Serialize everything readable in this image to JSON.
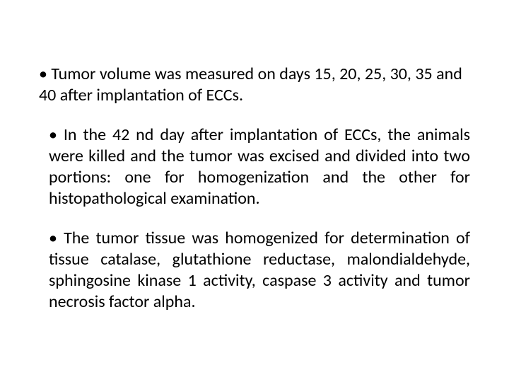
{
  "slide": {
    "bullets": [
      "• Tumor volume was measured on days 15, 20, 25, 30, 35 and 40 after implantation of ECCs.",
      "• In the 42 nd day after implantation of ECCs, the animals were killed and the tumor was excised and divided into two portions: one for homogenization and the other for histopathological examination.",
      "• The tumor tissue was homogenized for determination of tissue catalase, glutathione reductase, malondialdehyde, sphingosine kinase 1 activity, caspase 3 activity and tumor necrosis factor alpha."
    ]
  },
  "style": {
    "background_color": "#ffffff",
    "text_color": "#000000",
    "font_family": "Calibri",
    "font_size_pt": 18
  }
}
